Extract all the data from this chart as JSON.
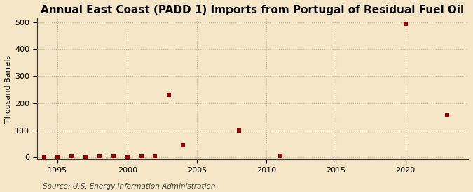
{
  "title": "Annual East Coast (PADD 1) Imports from Portugal of Residual Fuel Oil",
  "ylabel": "Thousand Barrels",
  "source": "Source: U.S. Energy Information Administration",
  "xlim": [
    1993.5,
    2024.5
  ],
  "ylim": [
    -8,
    515
  ],
  "yticks": [
    0,
    100,
    200,
    300,
    400,
    500
  ],
  "xticks": [
    1995,
    2000,
    2005,
    2010,
    2015,
    2020
  ],
  "background_color": "#f5e6c8",
  "plot_bg_color": "#f5e6c8",
  "marker_color": "#990000",
  "marker": "s",
  "marker_size": 5,
  "title_fontsize": 11,
  "tick_fontsize": 8,
  "ylabel_fontsize": 8,
  "source_fontsize": 7.5,
  "grid_color": "#c8b89a",
  "grid_linestyle": ":",
  "grid_linewidth": 0.8,
  "spine_color": "#333333",
  "data": [
    [
      1994,
      0
    ],
    [
      1995,
      2
    ],
    [
      1996,
      3
    ],
    [
      1997,
      2
    ],
    [
      1998,
      3
    ],
    [
      1999,
      3
    ],
    [
      2000,
      2
    ],
    [
      2001,
      3
    ],
    [
      2002,
      3
    ],
    [
      2003,
      230
    ],
    [
      2004,
      45
    ],
    [
      2008,
      100
    ],
    [
      2011,
      5
    ],
    [
      2020,
      493
    ],
    [
      2023,
      155
    ]
  ]
}
